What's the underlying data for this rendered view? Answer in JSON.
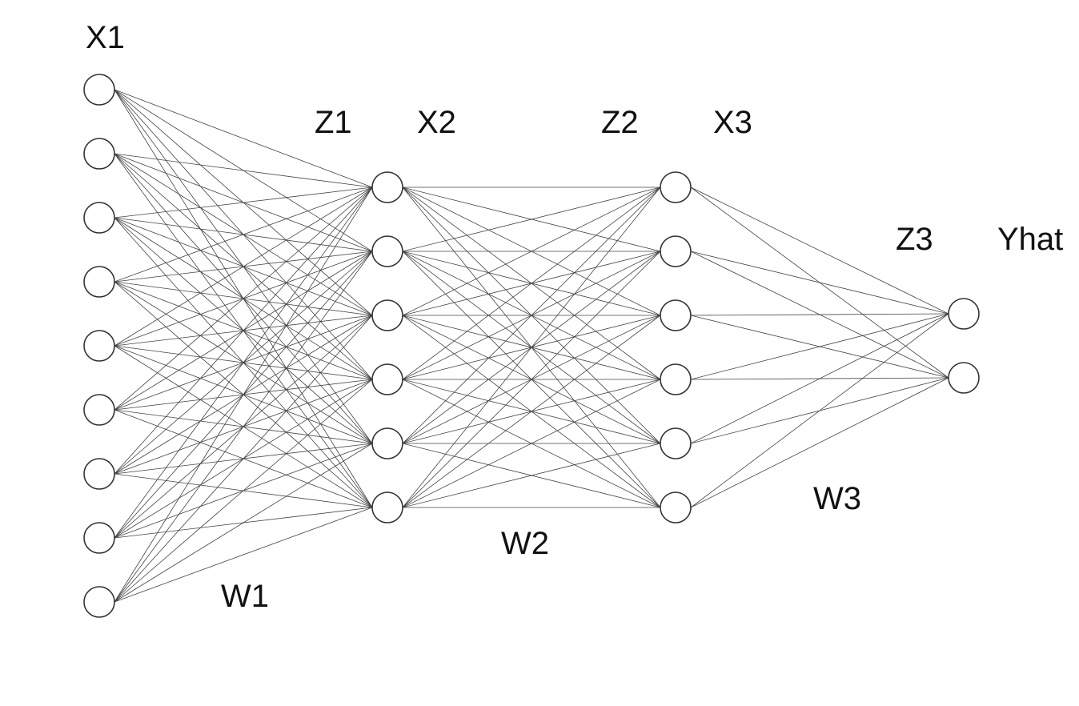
{
  "diagram": {
    "layers": [
      {
        "name": "input",
        "nodes": 9
      },
      {
        "name": "hidden-1",
        "nodes": 6
      },
      {
        "name": "hidden-2",
        "nodes": 6
      },
      {
        "name": "output",
        "nodes": 2
      }
    ],
    "labels": {
      "x1": "X1",
      "z1": "Z1",
      "x2": "X2",
      "z2": "Z2",
      "x3": "X3",
      "z3": "Z3",
      "yhat": "Yhat",
      "w1": "W1",
      "w2": "W2",
      "w3": "W3"
    },
    "colors": {
      "stroke": "#333333",
      "edge": "#444444",
      "text": "#111111",
      "background": "#ffffff"
    }
  }
}
